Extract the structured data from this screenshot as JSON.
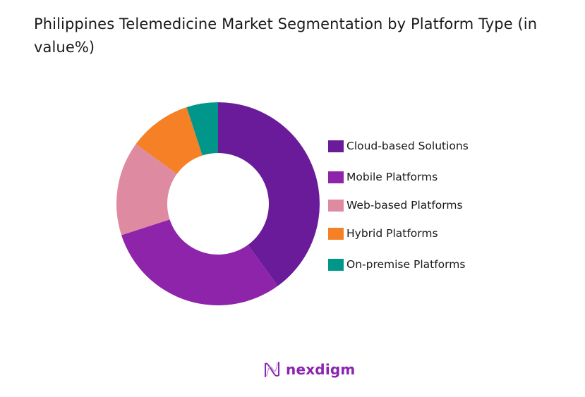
{
  "title": "Philippines Telemedicine Market Segmentation by Platform Type (in value%)",
  "chart_data": {
    "type": "pie",
    "subtype": "donut",
    "title": "Philippines Telemedicine Market Segmentation by Platform Type (in value%)",
    "categories": [
      "Cloud-based Solutions",
      "Mobile Platforms",
      "Web-based Platforms",
      "Hybrid Platforms",
      "On-premise Platforms"
    ],
    "values": [
      40,
      30,
      15,
      10,
      5
    ],
    "unit": "%",
    "colors": [
      "#6a1b9a",
      "#8e24aa",
      "#de8ba2",
      "#f58025",
      "#00968a"
    ],
    "legend_position": "right",
    "start_angle_deg": 0,
    "direction": "clockwise"
  },
  "legend": [
    {
      "label": "Cloud-based Solutions",
      "color": "#6a1b9a"
    },
    {
      "label": "Mobile Platforms",
      "color": "#8e24aa"
    },
    {
      "label": "Web-based Platforms",
      "color": "#de8ba2"
    },
    {
      "label": "Hybrid Platforms",
      "color": "#f58025"
    },
    {
      "label": "On-premise Platforms",
      "color": "#00968a"
    }
  ],
  "brand": {
    "name": "nexdigm",
    "color": "#8a25b1",
    "icon": "nexdigm-wave-logo-icon"
  }
}
